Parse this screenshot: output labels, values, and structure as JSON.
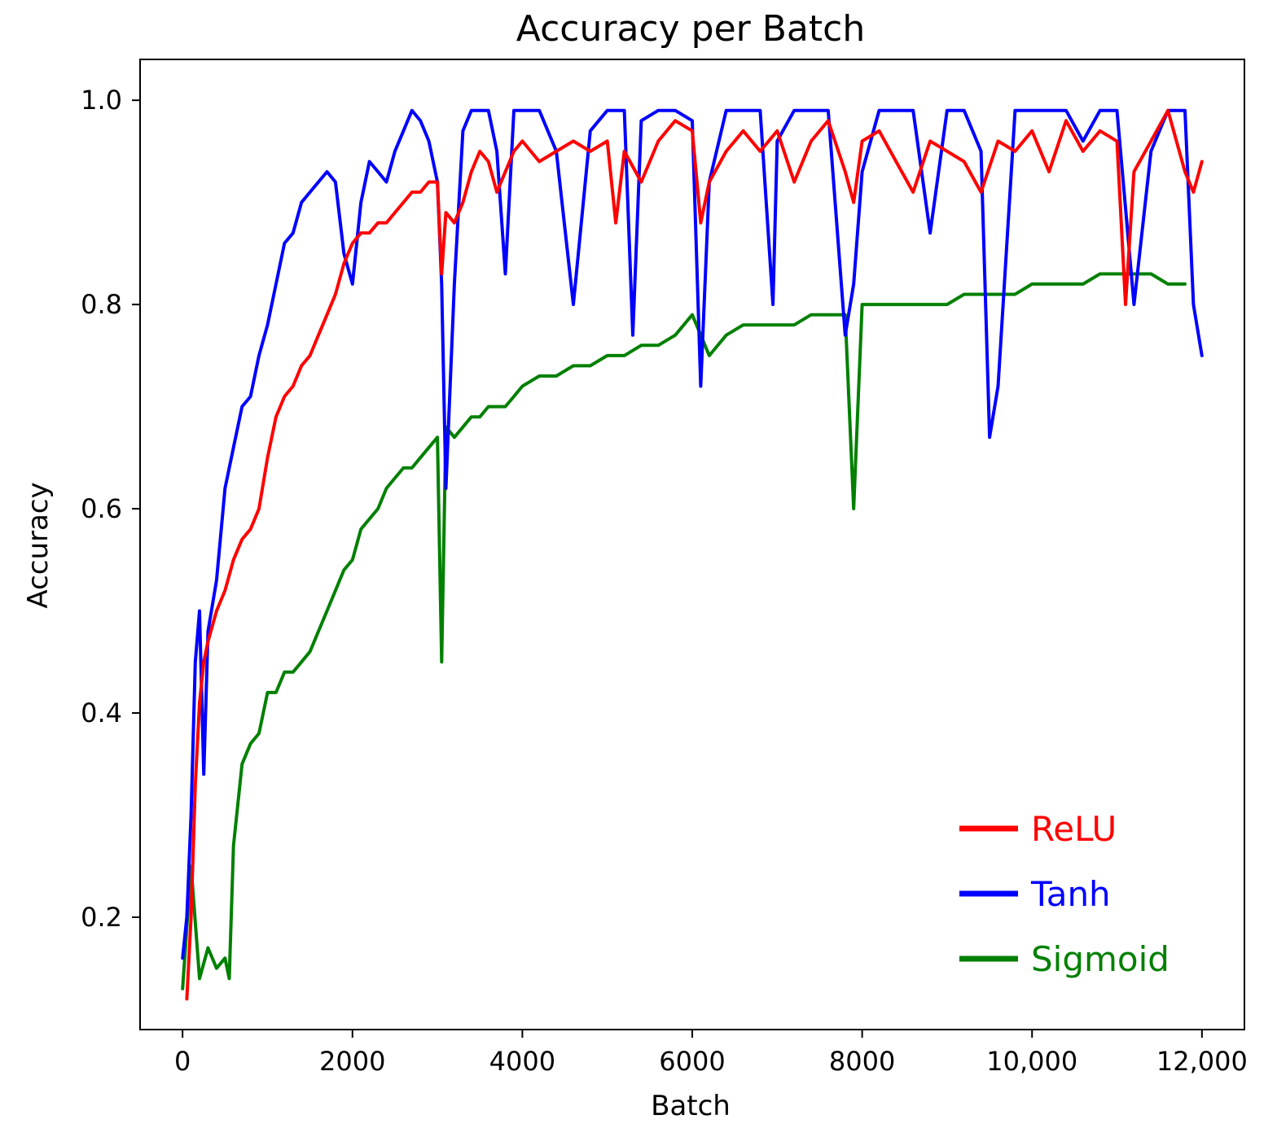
{
  "chart_data": {
    "type": "line",
    "title": "Accuracy per Batch",
    "xlabel": "Batch",
    "ylabel": "Accuracy",
    "xlim": [
      -500,
      12500
    ],
    "ylim": [
      0.09,
      1.04
    ],
    "grid": false,
    "legend_position": "bottom-right",
    "x_ticks": [
      0,
      2000,
      4000,
      6000,
      8000,
      10000,
      12000
    ],
    "x_tick_labels": [
      "0",
      "2000",
      "4000",
      "6000",
      "8000",
      "10,000",
      "12,000"
    ],
    "y_ticks": [
      0.2,
      0.4,
      0.6,
      0.8,
      1.0
    ],
    "y_tick_labels": [
      "0.2",
      "0.4",
      "0.6",
      "0.8",
      "1.0"
    ],
    "series": [
      {
        "name": "ReLU",
        "color": "#ff0000",
        "x": [
          50,
          100,
          150,
          200,
          250,
          300,
          400,
          500,
          600,
          700,
          800,
          900,
          1000,
          1100,
          1200,
          1300,
          1400,
          1500,
          1600,
          1700,
          1800,
          1900,
          2000,
          2100,
          2200,
          2300,
          2400,
          2500,
          2600,
          2700,
          2800,
          2900,
          3000,
          3050,
          3100,
          3200,
          3300,
          3400,
          3500,
          3600,
          3700,
          3800,
          3900,
          4000,
          4200,
          4400,
          4600,
          4800,
          5000,
          5100,
          5200,
          5400,
          5600,
          5800,
          6000,
          6100,
          6200,
          6400,
          6600,
          6800,
          7000,
          7200,
          7400,
          7600,
          7800,
          7900,
          8000,
          8200,
          8400,
          8600,
          8800,
          9000,
          9200,
          9400,
          9600,
          9800,
          10000,
          10200,
          10400,
          10600,
          10800,
          11000,
          11100,
          11200,
          11400,
          11600,
          11800,
          11900,
          12000
        ],
        "y": [
          0.12,
          0.2,
          0.33,
          0.41,
          0.45,
          0.47,
          0.5,
          0.52,
          0.55,
          0.57,
          0.58,
          0.6,
          0.65,
          0.69,
          0.71,
          0.72,
          0.74,
          0.75,
          0.77,
          0.79,
          0.81,
          0.84,
          0.86,
          0.87,
          0.87,
          0.88,
          0.88,
          0.89,
          0.9,
          0.91,
          0.91,
          0.92,
          0.92,
          0.83,
          0.89,
          0.88,
          0.9,
          0.93,
          0.95,
          0.94,
          0.91,
          0.93,
          0.95,
          0.96,
          0.94,
          0.95,
          0.96,
          0.95,
          0.96,
          0.88,
          0.95,
          0.92,
          0.96,
          0.98,
          0.97,
          0.88,
          0.92,
          0.95,
          0.97,
          0.95,
          0.97,
          0.92,
          0.96,
          0.98,
          0.93,
          0.9,
          0.96,
          0.97,
          0.94,
          0.91,
          0.96,
          0.95,
          0.94,
          0.91,
          0.96,
          0.95,
          0.97,
          0.93,
          0.98,
          0.95,
          0.97,
          0.96,
          0.8,
          0.93,
          0.96,
          0.99,
          0.93,
          0.91,
          0.94
        ]
      },
      {
        "name": "Tanh",
        "color": "#0000ff",
        "x": [
          0,
          50,
          100,
          150,
          200,
          250,
          300,
          400,
          500,
          600,
          700,
          800,
          900,
          1000,
          1100,
          1200,
          1300,
          1400,
          1500,
          1600,
          1700,
          1800,
          1900,
          2000,
          2100,
          2200,
          2300,
          2400,
          2500,
          2600,
          2700,
          2800,
          2900,
          3000,
          3050,
          3100,
          3200,
          3300,
          3400,
          3500,
          3600,
          3700,
          3800,
          3900,
          4000,
          4200,
          4400,
          4600,
          4800,
          5000,
          5200,
          5300,
          5400,
          5600,
          5800,
          6000,
          6100,
          6200,
          6400,
          6600,
          6800,
          6950,
          7000,
          7200,
          7400,
          7600,
          7800,
          7900,
          8000,
          8200,
          8400,
          8600,
          8800,
          9000,
          9200,
          9400,
          9500,
          9600,
          9800,
          10000,
          10200,
          10400,
          10600,
          10800,
          11000,
          11200,
          11400,
          11600,
          11800,
          11900,
          12000
        ],
        "y": [
          0.16,
          0.2,
          0.3,
          0.45,
          0.5,
          0.34,
          0.48,
          0.53,
          0.62,
          0.66,
          0.7,
          0.71,
          0.75,
          0.78,
          0.82,
          0.86,
          0.87,
          0.9,
          0.91,
          0.92,
          0.93,
          0.92,
          0.85,
          0.82,
          0.9,
          0.94,
          0.93,
          0.92,
          0.95,
          0.97,
          0.99,
          0.98,
          0.96,
          0.92,
          0.82,
          0.62,
          0.82,
          0.97,
          0.99,
          0.99,
          0.99,
          0.95,
          0.83,
          0.99,
          0.99,
          0.99,
          0.95,
          0.8,
          0.97,
          0.99,
          0.99,
          0.77,
          0.98,
          0.99,
          0.99,
          0.98,
          0.72,
          0.92,
          0.99,
          0.99,
          0.99,
          0.8,
          0.96,
          0.99,
          0.99,
          0.99,
          0.77,
          0.82,
          0.93,
          0.99,
          0.99,
          0.99,
          0.87,
          0.99,
          0.99,
          0.95,
          0.67,
          0.72,
          0.99,
          0.99,
          0.99,
          0.99,
          0.96,
          0.99,
          0.99,
          0.8,
          0.95,
          0.99,
          0.99,
          0.8,
          0.75
        ]
      },
      {
        "name": "Sigmoid",
        "color": "#008000",
        "x": [
          0,
          100,
          200,
          300,
          400,
          500,
          550,
          600,
          700,
          800,
          900,
          1000,
          1100,
          1200,
          1300,
          1400,
          1500,
          1600,
          1700,
          1800,
          1900,
          2000,
          2100,
          2200,
          2300,
          2400,
          2500,
          2600,
          2700,
          2800,
          2900,
          3000,
          3050,
          3100,
          3200,
          3300,
          3400,
          3500,
          3600,
          3700,
          3800,
          3900,
          4000,
          4200,
          4400,
          4600,
          4800,
          5000,
          5200,
          5400,
          5600,
          5800,
          6000,
          6200,
          6400,
          6600,
          6800,
          7000,
          7200,
          7400,
          7600,
          7800,
          7900,
          8000,
          8200,
          8400,
          8600,
          8800,
          9000,
          9200,
          9400,
          9600,
          9800,
          10000,
          10200,
          10400,
          10600,
          10800,
          11000,
          11200,
          11400,
          11600,
          11800
        ],
        "y": [
          0.13,
          0.25,
          0.14,
          0.17,
          0.15,
          0.16,
          0.14,
          0.27,
          0.35,
          0.37,
          0.38,
          0.42,
          0.42,
          0.44,
          0.44,
          0.45,
          0.46,
          0.48,
          0.5,
          0.52,
          0.54,
          0.55,
          0.58,
          0.59,
          0.6,
          0.62,
          0.63,
          0.64,
          0.64,
          0.65,
          0.66,
          0.67,
          0.45,
          0.68,
          0.67,
          0.68,
          0.69,
          0.69,
          0.7,
          0.7,
          0.7,
          0.71,
          0.72,
          0.73,
          0.73,
          0.74,
          0.74,
          0.75,
          0.75,
          0.76,
          0.76,
          0.77,
          0.79,
          0.75,
          0.77,
          0.78,
          0.78,
          0.78,
          0.78,
          0.79,
          0.79,
          0.79,
          0.6,
          0.8,
          0.8,
          0.8,
          0.8,
          0.8,
          0.8,
          0.81,
          0.81,
          0.81,
          0.81,
          0.82,
          0.82,
          0.82,
          0.82,
          0.83,
          0.83,
          0.83,
          0.83,
          0.82,
          0.82
        ]
      }
    ]
  }
}
